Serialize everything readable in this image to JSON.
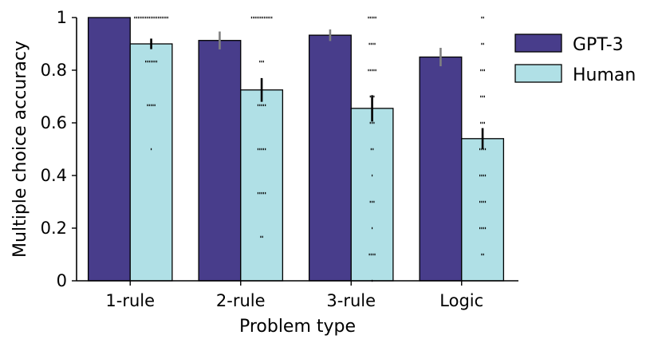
{
  "chart_data": {
    "type": "bar",
    "xlabel": "Problem type",
    "ylabel": "Multiple choice accuracy",
    "ylim": [
      0,
      1
    ],
    "yticks": [
      0,
      0.2,
      0.4,
      0.6,
      0.8,
      1
    ],
    "ytick_labels": [
      "0",
      "0.2",
      "0.4",
      "0.6",
      "0.8",
      "1"
    ],
    "categories": [
      "1-rule",
      "2-rule",
      "3-rule",
      "Logic"
    ],
    "legend_position": "top-right",
    "series": [
      {
        "name": "GPT-3",
        "color": "#483d8b",
        "error_color": "#808080",
        "values": [
          1.0,
          0.913,
          0.933,
          0.85
        ],
        "errors": [
          0,
          0.034,
          0.022,
          0.035
        ]
      },
      {
        "name": "Human",
        "color": "#b0e0e6",
        "error_color": "#000000",
        "values": [
          0.9,
          0.725,
          0.655,
          0.54
        ],
        "errors": [
          0.02,
          0.045,
          0.05,
          0.04
        ]
      }
    ],
    "individual_points": [
      [
        1.0,
        1.0,
        1.0,
        1.0,
        1.0,
        1.0,
        1.0,
        1.0,
        1.0,
        1.0,
        1.0,
        1.0,
        1.0,
        1.0,
        1.0,
        1.0,
        1.0,
        1.0,
        1.0,
        0.833,
        0.833,
        0.833,
        0.833,
        0.833,
        0.833,
        0.833,
        0.667,
        0.667,
        0.667,
        0.667,
        0.667,
        0.5
      ],
      [
        1.0,
        1.0,
        1.0,
        1.0,
        1.0,
        1.0,
        1.0,
        1.0,
        1.0,
        1.0,
        1.0,
        1.0,
        0.833,
        0.833,
        0.833,
        0.667,
        0.667,
        0.667,
        0.667,
        0.667,
        0.5,
        0.5,
        0.5,
        0.5,
        0.5,
        0.333,
        0.333,
        0.333,
        0.333,
        0.333,
        0.167,
        0.167
      ],
      [
        1.0,
        1.0,
        1.0,
        1.0,
        1.0,
        0.9,
        0.9,
        0.9,
        0.9,
        0.8,
        0.8,
        0.8,
        0.8,
        0.8,
        0.7,
        0.7,
        0.7,
        0.6,
        0.6,
        0.6,
        0.5,
        0.5,
        0.4,
        0.3,
        0.3,
        0.3,
        0.2,
        0.1,
        0.1,
        0.1,
        0.1,
        0.0
      ],
      [
        1.0,
        1.0,
        0.9,
        0.9,
        0.8,
        0.8,
        0.8,
        0.7,
        0.7,
        0.7,
        0.6,
        0.6,
        0.6,
        0.5,
        0.5,
        0.5,
        0.5,
        0.4,
        0.4,
        0.4,
        0.4,
        0.3,
        0.3,
        0.3,
        0.3,
        0.2,
        0.2,
        0.2,
        0.2,
        0.1,
        0.1
      ]
    ]
  }
}
